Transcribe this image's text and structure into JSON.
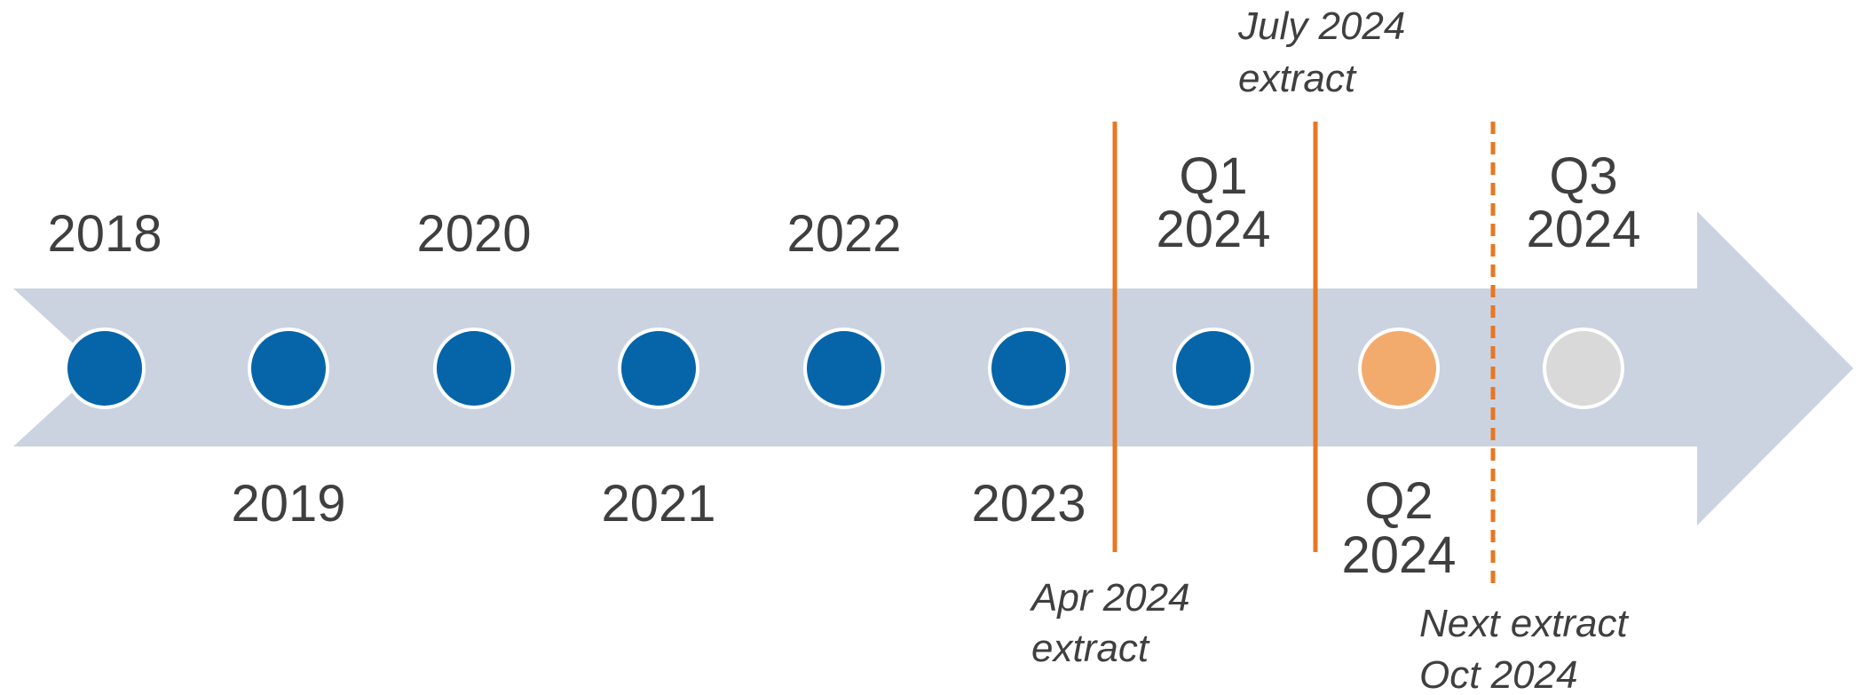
{
  "timeline": {
    "arrow_color": "#cbd3e1",
    "milestones": [
      {
        "line1": "",
        "line2": "2018",
        "status": "complete",
        "color": "#0565a8"
      },
      {
        "line1": "",
        "line2": "2019",
        "status": "complete",
        "color": "#0565a8"
      },
      {
        "line1": "",
        "line2": "2020",
        "status": "complete",
        "color": "#0565a8"
      },
      {
        "line1": "",
        "line2": "2021",
        "status": "complete",
        "color": "#0565a8"
      },
      {
        "line1": "",
        "line2": "2022",
        "status": "complete",
        "color": "#0565a8"
      },
      {
        "line1": "",
        "line2": "2023",
        "status": "complete",
        "color": "#0565a8"
      },
      {
        "line1": "Q1",
        "line2": "2024",
        "status": "complete",
        "color": "#0565a8"
      },
      {
        "line1": "Q2",
        "line2": "2024",
        "status": "in-progress",
        "color": "#f2ab6d"
      },
      {
        "line1": "Q3",
        "line2": "2024",
        "status": "upcoming",
        "color": "#d9d9d9"
      }
    ],
    "extracts": [
      {
        "line1": "Apr 2024",
        "line2": "extract",
        "style": "solid",
        "color": "#e87722"
      },
      {
        "line1": "July 2024",
        "line2": "extract",
        "style": "solid",
        "color": "#e87722"
      },
      {
        "line1": "Next extract",
        "line2": "Oct 2024",
        "style": "dashed",
        "color": "#e87722"
      }
    ]
  }
}
